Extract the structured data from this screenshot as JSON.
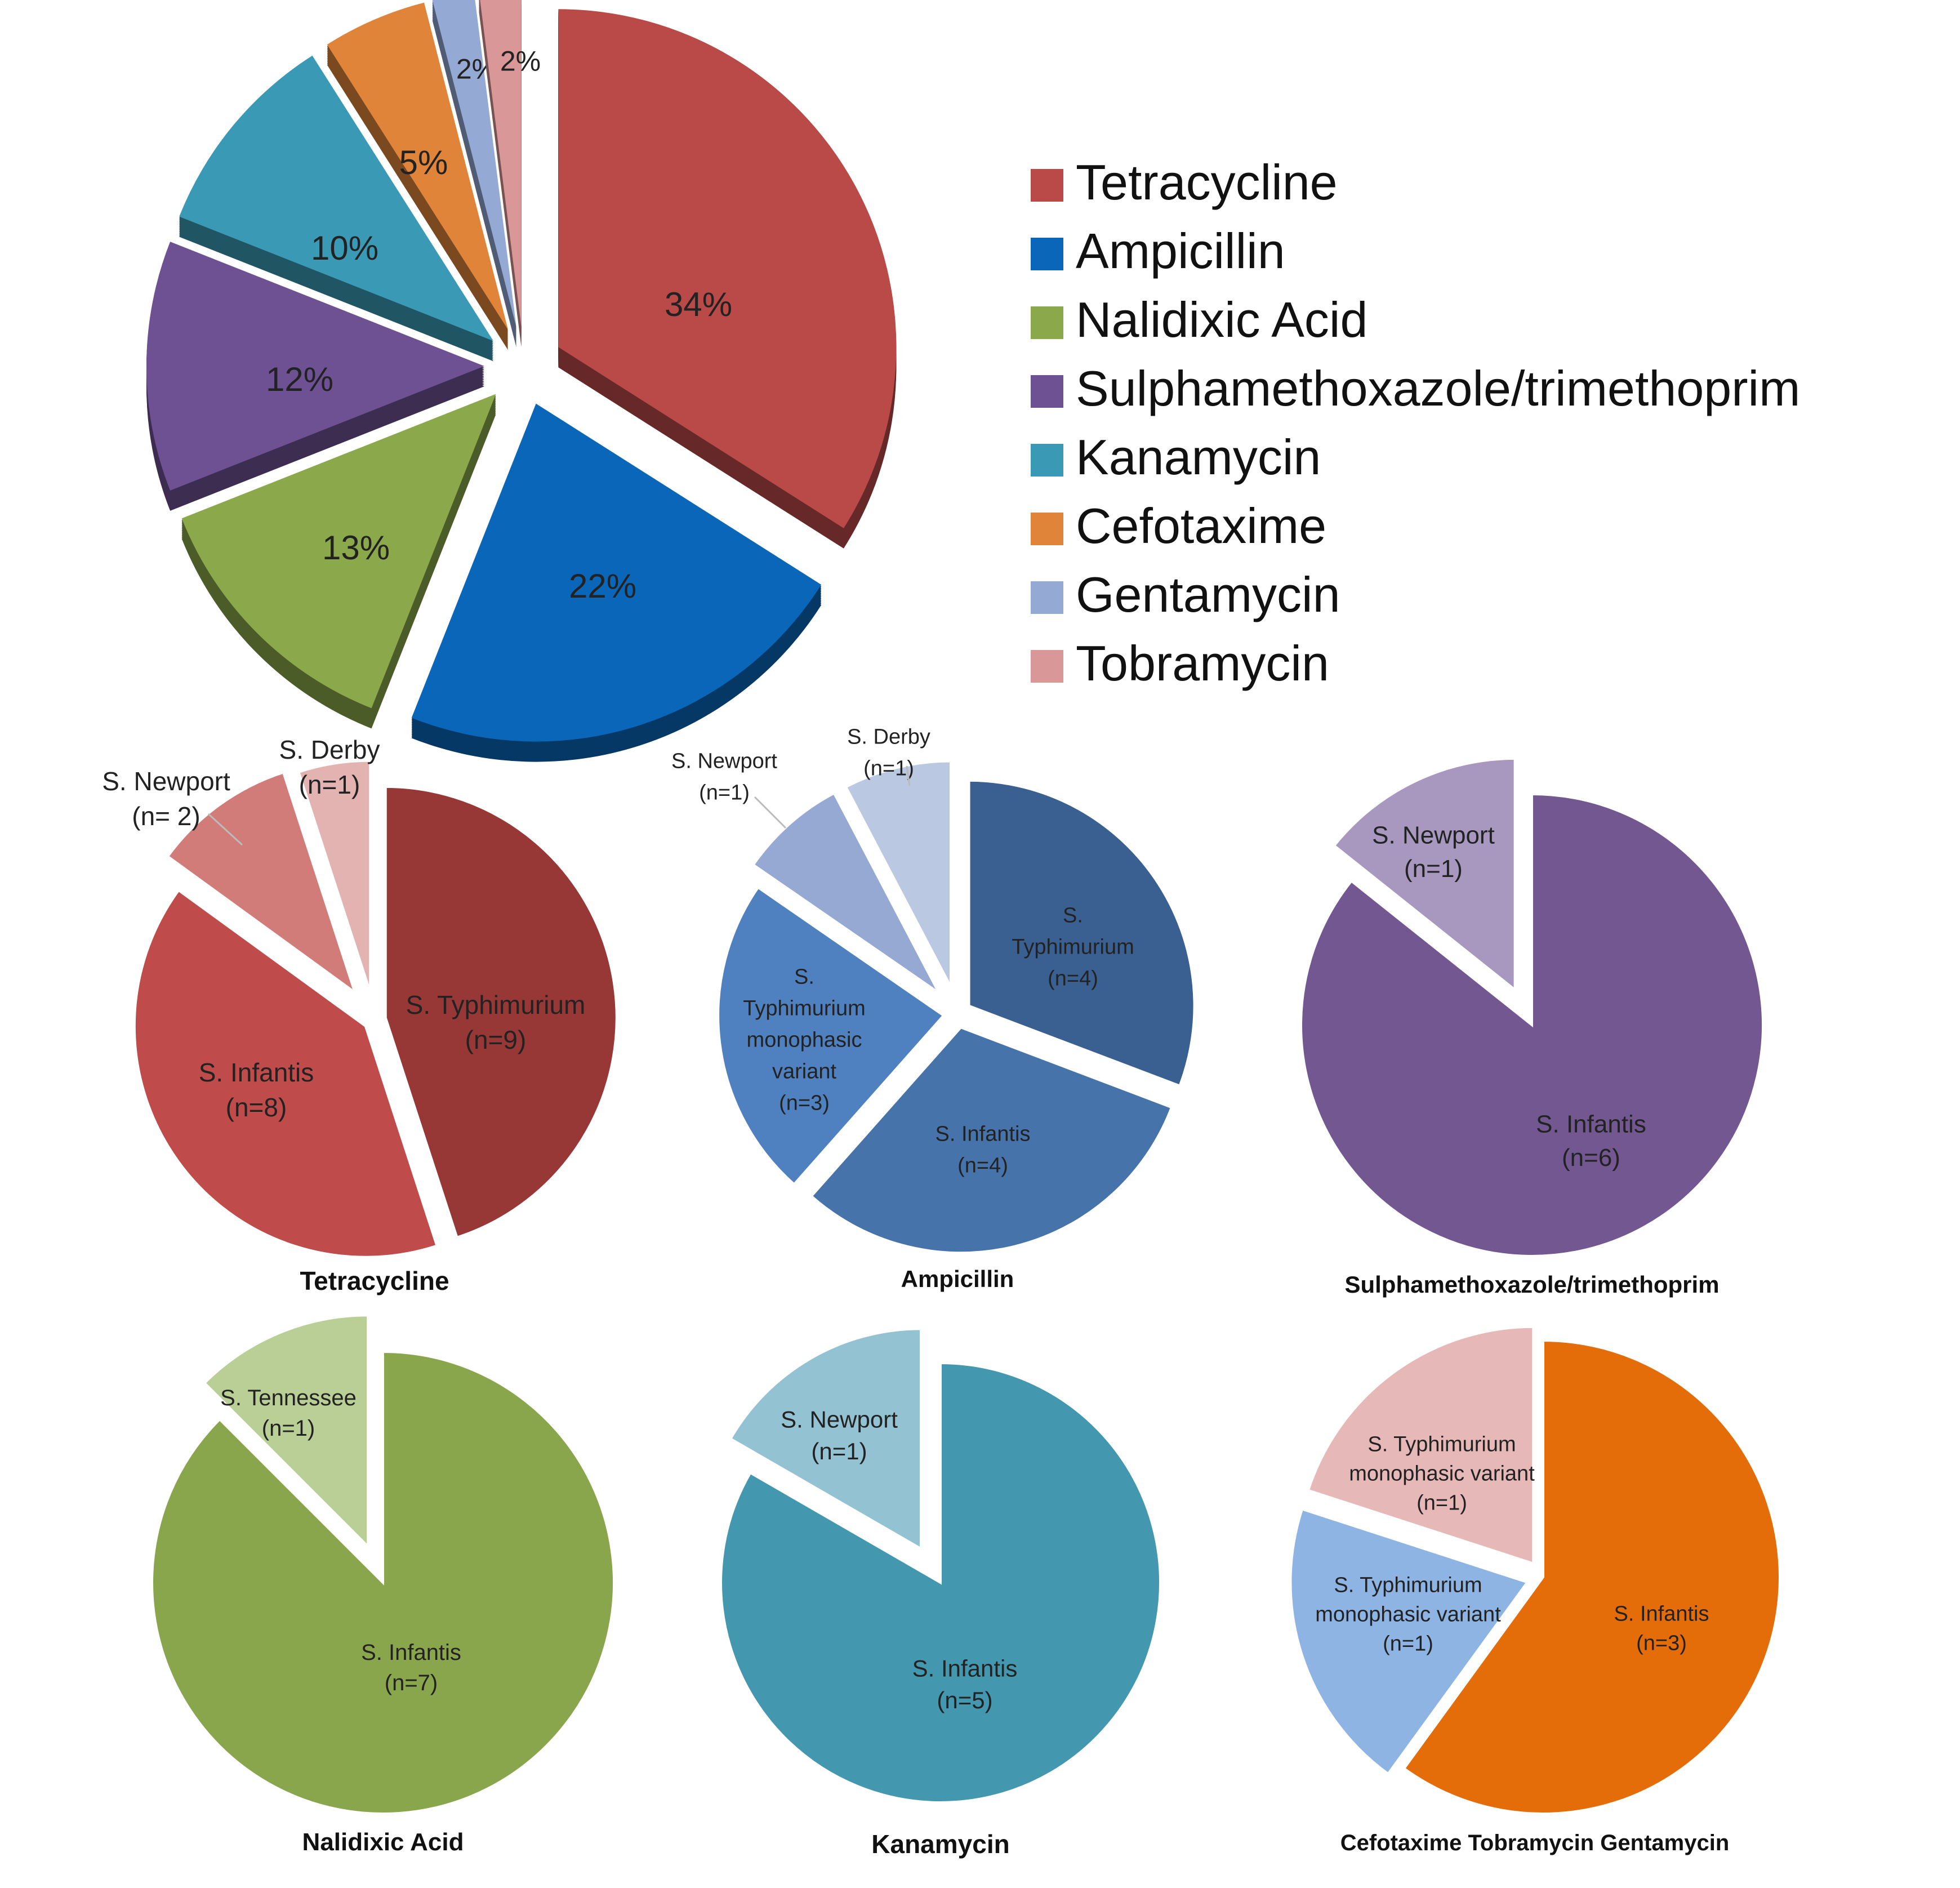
{
  "chart_data": [
    {
      "id": "main",
      "type": "pie",
      "title": "",
      "legend_placement": "right",
      "categories": [
        "Tetracycline",
        "Ampicillin",
        "Nalidixic Acid",
        "Sulphamethoxazole/trimethoprim",
        "Kanamycin",
        "Cefotaxime",
        "Gentamycin",
        "Tobramycin"
      ],
      "values": [
        34,
        22,
        13,
        12,
        10,
        5,
        2,
        2
      ],
      "labels": [
        "34%",
        "22%",
        "13%",
        "12%",
        "10%",
        "5%",
        "2%",
        "2%"
      ],
      "colors": [
        "#B94A48",
        "#0A66B8",
        "#8BA84A",
        "#6E5193",
        "#3A9AB5",
        "#E0843A",
        "#94A9D4",
        "#D99797"
      ],
      "exploded": true
    },
    {
      "id": "tetracycline",
      "type": "pie",
      "title": "Tetracycline",
      "categories": [
        "S. Typhimurium",
        "S. Infantis",
        "S. Newport",
        "S. Derby"
      ],
      "values": [
        9,
        8,
        2,
        1
      ],
      "labels": [
        [
          "S. Typhimurium",
          "(n=9)"
        ],
        [
          "S. Infantis",
          "(n=8)"
        ],
        [
          "S. Newport",
          "(n= 2)"
        ],
        [
          "S. Derby",
          "(n=1)"
        ]
      ],
      "colors": [
        "#973836",
        "#BF4C4A",
        "#D27C7A",
        "#E3B3B2"
      ]
    },
    {
      "id": "ampicillin",
      "type": "pie",
      "title": "Ampicillin",
      "categories": [
        "S. Typhimurium",
        "S. Infantis",
        "S. Typhimurium monophasic variant",
        "S. Newport",
        "S. Derby"
      ],
      "values": [
        4,
        4,
        3,
        1,
        1
      ],
      "labels": [
        [
          "S.",
          "Typhimurium",
          "(n=4)"
        ],
        [
          "S. Infantis",
          "(n=4)"
        ],
        [
          "S.",
          "Typhimurium",
          "monophasic",
          "variant",
          "(n=3)"
        ],
        [
          "S. Newport",
          "(n=1)"
        ],
        [
          "S. Derby",
          "(n=1)"
        ]
      ],
      "colors": [
        "#3A5F91",
        "#4673AA",
        "#4F81C0",
        "#95A9D3",
        "#BAC8E1"
      ]
    },
    {
      "id": "sulpha",
      "type": "pie",
      "title": "Sulphamethoxazole/trimethoprim",
      "categories": [
        "S. Infantis",
        "S. Newport"
      ],
      "values": [
        6,
        1
      ],
      "labels": [
        [
          "S. Infantis",
          "(n=6)"
        ],
        [
          "S. Newport",
          "(n=1)"
        ]
      ],
      "colors": [
        "#725791",
        "#A898BF"
      ]
    },
    {
      "id": "nalidixic",
      "type": "pie",
      "title": "Nalidixic Acid",
      "categories": [
        "S. Infantis",
        "S. Tennessee"
      ],
      "values": [
        7,
        1
      ],
      "labels": [
        [
          "S. Infantis",
          "(n=7)"
        ],
        [
          "S. Tennessee",
          "(n=1)"
        ]
      ],
      "colors": [
        "#8AA64D",
        "#B9CF95"
      ]
    },
    {
      "id": "kanamycin",
      "type": "pie",
      "title": "Kanamycin",
      "categories": [
        "S. Infantis",
        "S. Newport"
      ],
      "values": [
        5,
        1
      ],
      "labels": [
        [
          "S. Infantis",
          "(n=5)"
        ],
        [
          "S. Newport",
          "(n=1)"
        ]
      ],
      "colors": [
        "#4398B0",
        "#93C3D3"
      ]
    },
    {
      "id": "cefotaxime",
      "type": "pie",
      "title": "Cefotaxime   Tobramycin   Gentamycin",
      "categories": [
        "S. Infantis",
        "S. Typhimurium monophasic variant",
        "S. Typhimurium monophasic variant"
      ],
      "values": [
        3,
        1,
        1
      ],
      "labels": [
        [
          "S. Infantis",
          "(n=3)"
        ],
        [
          "S. Typhimurium",
          "monophasic variant",
          "(n=1)"
        ],
        [
          "S. Typhimurium",
          "monophasic variant",
          "(n=1)"
        ]
      ],
      "colors": [
        "#E46D0A",
        "#8EB4E3",
        "#E6B9B8"
      ]
    }
  ]
}
